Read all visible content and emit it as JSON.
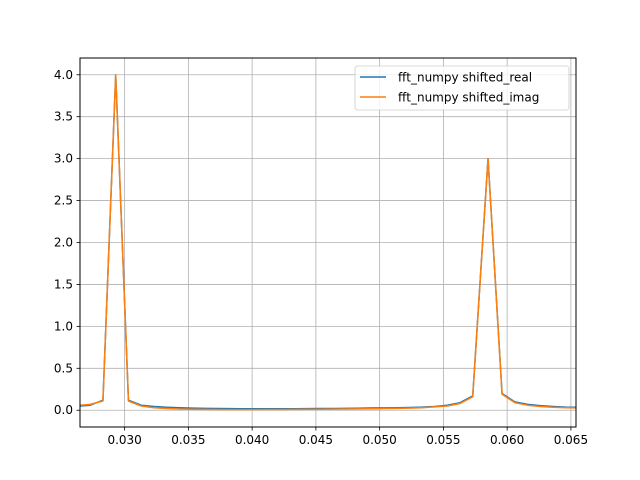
{
  "chart_data": {
    "type": "line",
    "title": "",
    "xlabel": "",
    "ylabel": "",
    "xlim": [
      0.0265,
      0.0654
    ],
    "ylim": [
      -0.2,
      4.2
    ],
    "grid": true,
    "legend_position": "top-right",
    "x_ticks": [
      "0.030",
      "0.035",
      "0.040",
      "0.045",
      "0.050",
      "0.055",
      "0.060",
      "0.065"
    ],
    "y_ticks": [
      "0.0",
      "0.5",
      "1.0",
      "1.5",
      "2.0",
      "2.5",
      "3.0",
      "3.5",
      "4.0"
    ],
    "x": [
      0.0265,
      0.0273,
      0.0283,
      0.0293,
      0.0303,
      0.0313,
      0.0323,
      0.0333,
      0.0343,
      0.0353,
      0.0363,
      0.0373,
      0.0383,
      0.0393,
      0.0403,
      0.0413,
      0.0423,
      0.0433,
      0.0443,
      0.0453,
      0.0463,
      0.0473,
      0.0483,
      0.0493,
      0.0503,
      0.0513,
      0.0523,
      0.0533,
      0.0543,
      0.0553,
      0.0563,
      0.0573,
      0.0585,
      0.0596,
      0.0606,
      0.0616,
      0.0626,
      0.0636,
      0.0646,
      0.0654
    ],
    "series": [
      {
        "name": "fft_numpy shifted_real",
        "color": "#1f77b4",
        "values": [
          0.05,
          0.06,
          0.12,
          4.0,
          0.12,
          0.06,
          0.045,
          0.035,
          0.03,
          0.025,
          0.022,
          0.02,
          0.019,
          0.018,
          0.018,
          0.018,
          0.018,
          0.018,
          0.019,
          0.02,
          0.021,
          0.022,
          0.024,
          0.026,
          0.028,
          0.03,
          0.033,
          0.037,
          0.045,
          0.06,
          0.09,
          0.17,
          3.0,
          0.2,
          0.1,
          0.07,
          0.055,
          0.045,
          0.037,
          0.035
        ]
      },
      {
        "name": "fft_numpy shifted_imag",
        "color": "#ff7f0e",
        "values": [
          0.06,
          0.07,
          0.11,
          4.0,
          0.11,
          0.05,
          0.03,
          0.02,
          0.015,
          0.012,
          0.01,
          0.008,
          0.007,
          0.007,
          0.007,
          0.008,
          0.009,
          0.01,
          0.011,
          0.012,
          0.013,
          0.014,
          0.016,
          0.018,
          0.02,
          0.022,
          0.025,
          0.03,
          0.04,
          0.05,
          0.08,
          0.16,
          3.0,
          0.19,
          0.09,
          0.06,
          0.045,
          0.035,
          0.03,
          0.028
        ]
      }
    ]
  }
}
